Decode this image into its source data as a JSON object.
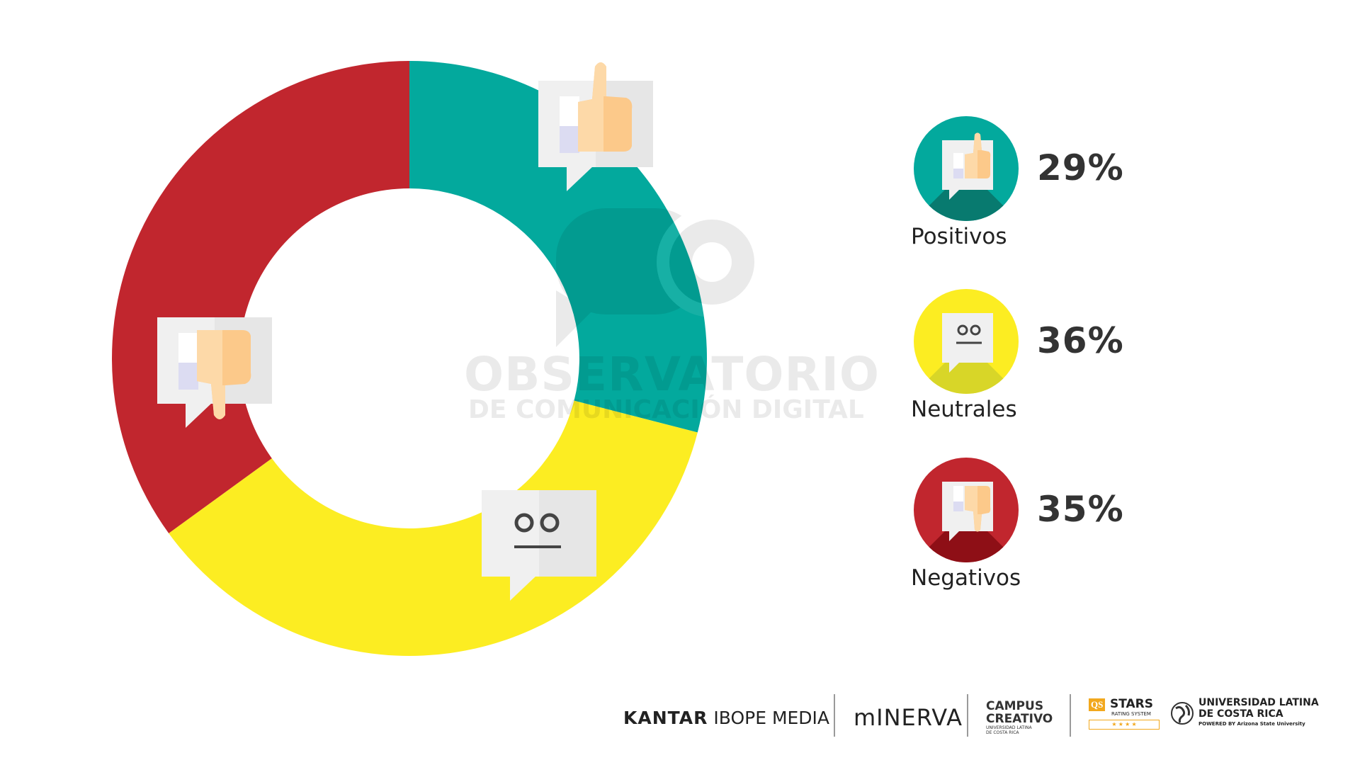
{
  "chart_data": {
    "type": "pie",
    "variant": "donut",
    "categories": [
      "Positivos",
      "Neutrales",
      "Negativos"
    ],
    "values": [
      29,
      36,
      35
    ],
    "colors": [
      "#03a99d",
      "#fced22",
      "#c1262e"
    ],
    "icons": [
      "thumbs-up-icon",
      "neutral-face-icon",
      "thumbs-down-icon"
    ]
  },
  "legend": [
    {
      "label": "Positivos",
      "value": "29%",
      "color": "#03a99d",
      "shade": "#087a6f",
      "icon": "thumbs-up-icon"
    },
    {
      "label": "Neutrales",
      "value": "36%",
      "color": "#fced22",
      "shade": "#d8d628",
      "icon": "neutral-face-icon"
    },
    {
      "label": "Negativos",
      "value": "35%",
      "color": "#c1262e",
      "shade": "#8e0f16",
      "icon": "thumbs-down-icon"
    }
  ],
  "watermark": {
    "line1": "OBSERVATORIO",
    "line2": "DE COMUNICACIÓN DIGITAL"
  },
  "footer": {
    "kantar_bold": "KANTAR",
    "kantar_light": "IBOPE MEDIA",
    "minerva": "mINERVA",
    "campus_line1": "CAMPUS",
    "campus_line2": "CREATIVO",
    "campus_sub1": "UNIVERSIDAD LATINA",
    "campus_sub2": "DE COSTA RICA",
    "qs": "QS",
    "stars": "STARS",
    "stars_sub": "RATING SYSTEM",
    "stars_rating": "★ ★ ★ ★",
    "ulatina_line1": "UNIVERSIDAD LATINA",
    "ulatina_line2": "DE COSTA RICA",
    "ulatina_sub": "POWERED BY Arizona State University"
  }
}
